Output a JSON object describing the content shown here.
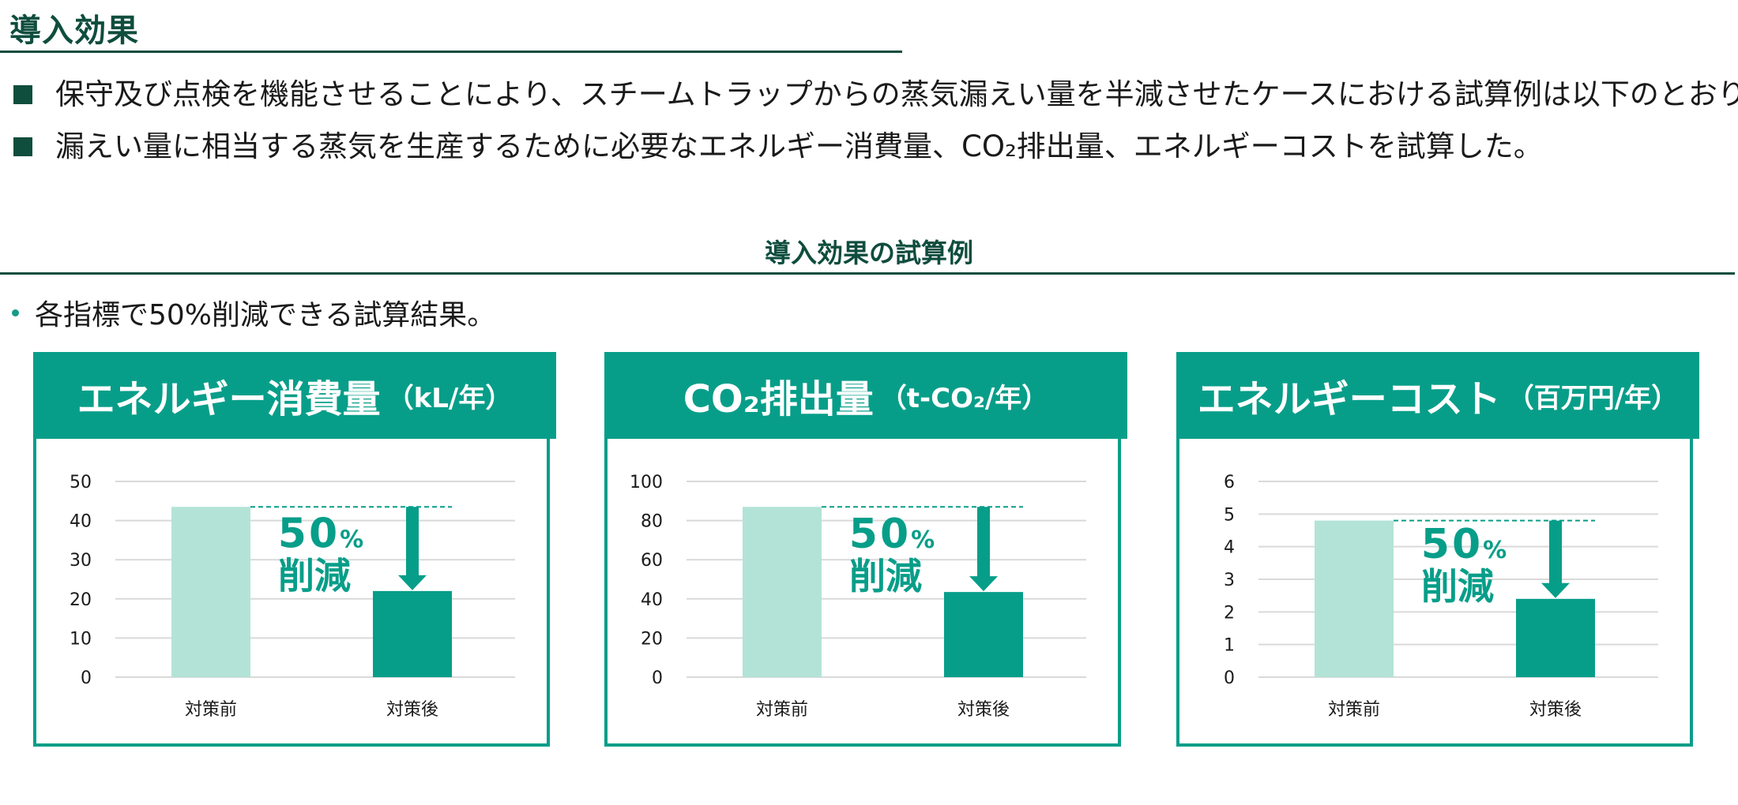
{
  "page": {
    "title": "導入効果",
    "bullets": [
      "保守及び点検を機能させることにより、スチームトラップからの蒸気漏えい量を半減させたケースにおける試算例は以下のとおり。",
      "漏えい量に相当する蒸気を生産するために必要なエネルギー消費量、CO₂排出量、エネルギーコストを試算した。"
    ],
    "section_heading": "導入効果の試算例",
    "note": "各指標で50%削減できる試算結果。"
  },
  "colors": {
    "brand_dark": "#0f4d3d",
    "teal": "#079e89",
    "bar_before": "#b3e3d7",
    "bar_after": "#079e89",
    "gridline": "#d9d9d9"
  },
  "chart_data": [
    {
      "type": "bar",
      "title": "エネルギー消費量",
      "unit_label": "（kL/年）",
      "categories": [
        "対策前",
        "対策後"
      ],
      "values": [
        43.5,
        22
      ],
      "ylim": [
        0,
        50
      ],
      "yticks": [
        0,
        10,
        20,
        30,
        40,
        50
      ],
      "grid": true,
      "annotation": {
        "percent": "50",
        "percent_sign": "%",
        "label": "削減"
      }
    },
    {
      "type": "bar",
      "title": "CO₂排出量",
      "unit_label": "（t-CO₂/年）",
      "categories": [
        "対策前",
        "対策後"
      ],
      "values": [
        87,
        43.5
      ],
      "ylim": [
        0,
        100
      ],
      "yticks": [
        0,
        20,
        40,
        60,
        80,
        100
      ],
      "grid": true,
      "annotation": {
        "percent": "50",
        "percent_sign": "%",
        "label": "削減"
      }
    },
    {
      "type": "bar",
      "title": "エネルギーコスト",
      "unit_label": "（百万円/年）",
      "categories": [
        "対策前",
        "対策後"
      ],
      "values": [
        4.8,
        2.4
      ],
      "ylim": [
        0,
        6
      ],
      "yticks": [
        0,
        1,
        2,
        3,
        4,
        5,
        6
      ],
      "grid": true,
      "annotation": {
        "percent": "50",
        "percent_sign": "%",
        "label": "削減"
      }
    }
  ]
}
